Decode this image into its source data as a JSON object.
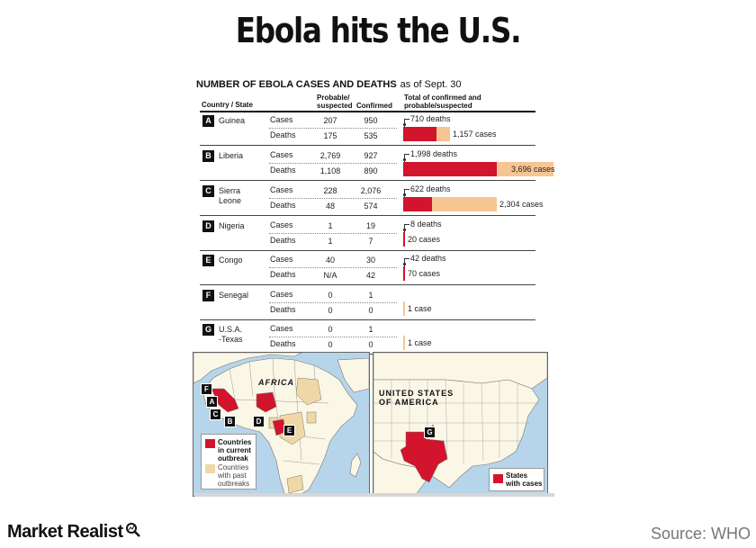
{
  "title": "Ebola hits the U.S.",
  "chart": {
    "heading": "NUMBER OF EBOLA CASES AND DEATHS",
    "as_of": "as of Sept. 30",
    "col_country": "Country / State",
    "col_probable_1": "Probable/",
    "col_probable_2": "suspected",
    "col_confirmed": "Confirmed",
    "col_total_1": "Total of confirmed and",
    "col_total_2": "probable/suspected",
    "rows": [
      {
        "letter": "A",
        "name_1": "Guinea",
        "name_2": "",
        "cases_label": "Cases",
        "deaths_label": "Deaths",
        "cases_probable": "207",
        "cases_confirmed": "950",
        "deaths_probable": "175",
        "deaths_confirmed": "535",
        "total_deaths": 710,
        "total_cases": 1157,
        "deaths_text": "710 deaths",
        "cases_text": "1,157 cases"
      },
      {
        "letter": "B",
        "name_1": "Liberia",
        "name_2": "",
        "cases_label": "Cases",
        "deaths_label": "Deaths",
        "cases_probable": "2,769",
        "cases_confirmed": "927",
        "deaths_probable": "1,108",
        "deaths_confirmed": "890",
        "total_deaths": 1998,
        "total_cases": 3696,
        "deaths_text": "1,998 deaths",
        "cases_text": "3,696 cases"
      },
      {
        "letter": "C",
        "name_1": "Sierra",
        "name_2": "Leone",
        "cases_label": "Cases",
        "deaths_label": "Deaths",
        "cases_probable": "228",
        "cases_confirmed": "2,076",
        "deaths_probable": "48",
        "deaths_confirmed": "574",
        "total_deaths": 622,
        "total_cases": 2304,
        "deaths_text": "622 deaths",
        "cases_text": "2,304 cases"
      },
      {
        "letter": "D",
        "name_1": "Nigeria",
        "name_2": "",
        "cases_label": "Cases",
        "deaths_label": "Deaths",
        "cases_probable": "1",
        "cases_confirmed": "19",
        "deaths_probable": "1",
        "deaths_confirmed": "7",
        "total_deaths": 8,
        "total_cases": 20,
        "deaths_text": "8 deaths",
        "cases_text": "20 cases"
      },
      {
        "letter": "E",
        "name_1": "Congo",
        "name_2": "",
        "cases_label": "Cases",
        "deaths_label": "Deaths",
        "cases_probable": "40",
        "cases_confirmed": "30",
        "deaths_probable": "N/A",
        "deaths_confirmed": "42",
        "total_deaths": 42,
        "total_cases": 70,
        "deaths_text": "42 deaths",
        "cases_text": "70 cases"
      },
      {
        "letter": "F",
        "name_1": "Senegal",
        "name_2": "",
        "cases_label": "Cases",
        "deaths_label": "Deaths",
        "cases_probable": "0",
        "cases_confirmed": "1",
        "deaths_probable": "0",
        "deaths_confirmed": "0",
        "total_deaths": 0,
        "total_cases": 1,
        "deaths_text": "",
        "cases_text": "1 case"
      },
      {
        "letter": "G",
        "name_1": "U.S.A.",
        "name_2": "-Texas",
        "cases_label": "Cases",
        "deaths_label": "Deaths",
        "cases_probable": "0",
        "cases_confirmed": "1",
        "deaths_probable": "0",
        "deaths_confirmed": "0",
        "total_deaths": 0,
        "total_cases": 1,
        "deaths_text": "",
        "cases_text": "1 case"
      }
    ],
    "colors": {
      "deaths": "#d2142d",
      "cases": "#f7c592"
    }
  },
  "map_africa": {
    "label": "AFRICA",
    "legend_current_1": "Countries",
    "legend_current_2": "in current",
    "legend_current_3": "outbreak",
    "legend_past_1": "Countries",
    "legend_past_2": "with past",
    "legend_past_3": "outbreaks",
    "markers": [
      "F",
      "A",
      "C",
      "B",
      "D",
      "E"
    ]
  },
  "map_usa": {
    "label_1": "UNITED STATES",
    "label_2": "OF AMERICA",
    "marker": "G",
    "legend_1": "States",
    "legend_2": "with cases"
  },
  "footer": {
    "brand": "Market Realist",
    "source": "Source: WHO"
  }
}
